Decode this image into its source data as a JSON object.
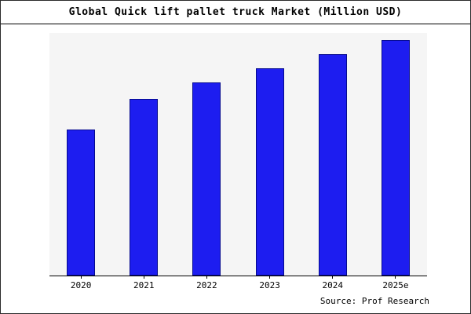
{
  "title": "Global Quick lift pallet truck Market (Million USD)",
  "source": "Source: Prof Research",
  "chart_data": {
    "type": "bar",
    "categories": [
      "2020",
      "2021",
      "2022",
      "2023",
      "2024",
      "2025e"
    ],
    "values": [
      62,
      75,
      82,
      88,
      94,
      100
    ],
    "title": "Global Quick lift pallet truck Market (Million USD)",
    "xlabel": "",
    "ylabel": "",
    "ylim": [
      0,
      103
    ],
    "grid": false,
    "legend": false,
    "bar_color": "#1d1df0",
    "bar_border_color": "#050a8e",
    "plot_bg": "#f5f5f5",
    "annotation": "Source: Prof Research"
  }
}
